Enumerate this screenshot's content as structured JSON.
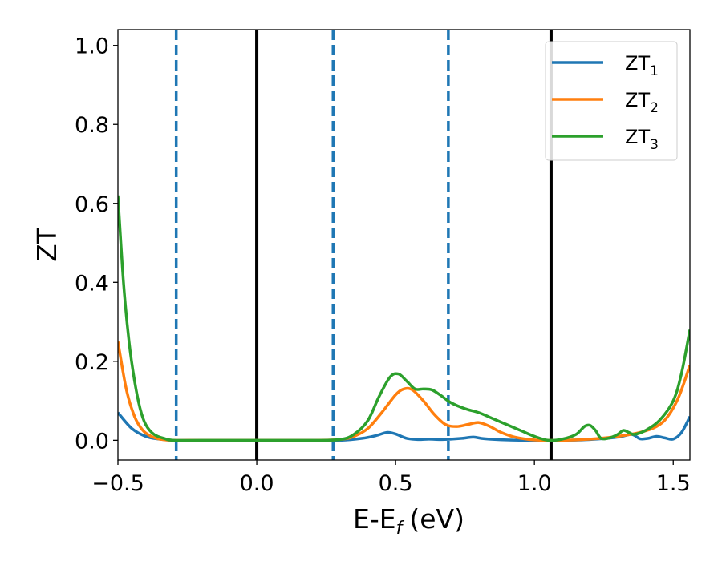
{
  "chart_data": {
    "type": "line",
    "xlabel": "E-E",
    "xlabel_sub": "f",
    "xlabel_unit": "(eV)",
    "ylabel": "ZT",
    "xlim": [
      -0.5,
      1.56
    ],
    "ylim": [
      -0.05,
      1.04
    ],
    "x_ticks": [
      -0.5,
      0.0,
      0.5,
      1.0,
      1.5
    ],
    "x_tick_labels": [
      "−0.5",
      "0.0",
      "0.5",
      "1.0",
      "1.5"
    ],
    "y_ticks": [
      0.0,
      0.2,
      0.4,
      0.6,
      0.8,
      1.0
    ],
    "y_tick_labels": [
      "0.0",
      "0.2",
      "0.4",
      "0.6",
      "0.8",
      "1.0"
    ],
    "grid": false,
    "legend_position": "top-right",
    "vertical_lines": [
      {
        "x": -0.29,
        "style": "dashed",
        "color": "#1f77b4"
      },
      {
        "x": 0.0,
        "style": "solid",
        "color": "#000000"
      },
      {
        "x": 0.275,
        "style": "dashed",
        "color": "#1f77b4"
      },
      {
        "x": 0.69,
        "style": "dashed",
        "color": "#1f77b4"
      },
      {
        "x": 1.06,
        "style": "solid",
        "color": "#000000"
      }
    ],
    "series": [
      {
        "name": "ZT",
        "name_sub": "1",
        "color": "#1f77b4",
        "x": [
          -0.5,
          -0.45,
          -0.4,
          -0.35,
          -0.3,
          -0.2,
          0.0,
          0.2,
          0.3,
          0.38,
          0.43,
          0.47,
          0.5,
          0.54,
          0.58,
          0.62,
          0.66,
          0.7,
          0.74,
          0.78,
          0.82,
          0.9,
          1.0,
          1.1,
          1.2,
          1.3,
          1.35,
          1.38,
          1.41,
          1.44,
          1.47,
          1.5,
          1.53,
          1.56
        ],
        "y": [
          0.07,
          0.03,
          0.01,
          0.003,
          0.0,
          0.0,
          0.0,
          0.0,
          0.0,
          0.005,
          0.012,
          0.02,
          0.016,
          0.005,
          0.002,
          0.003,
          0.002,
          0.003,
          0.005,
          0.008,
          0.004,
          0.001,
          0.0,
          0.0,
          0.002,
          0.008,
          0.015,
          0.004,
          0.005,
          0.01,
          0.006,
          0.003,
          0.02,
          0.06
        ]
      },
      {
        "name": "ZT",
        "name_sub": "2",
        "color": "#ff7f0e",
        "x": [
          -0.5,
          -0.47,
          -0.44,
          -0.41,
          -0.38,
          -0.35,
          -0.3,
          -0.2,
          0.0,
          0.2,
          0.3,
          0.35,
          0.4,
          0.45,
          0.5,
          0.53,
          0.56,
          0.6,
          0.64,
          0.68,
          0.72,
          0.76,
          0.8,
          0.84,
          0.88,
          0.93,
          1.0,
          1.1,
          1.2,
          1.3,
          1.38,
          1.44,
          1.48,
          1.52,
          1.56
        ],
        "y": [
          0.25,
          0.13,
          0.06,
          0.025,
          0.01,
          0.003,
          0.0,
          0.0,
          0.0,
          0.0,
          0.002,
          0.01,
          0.03,
          0.07,
          0.115,
          0.13,
          0.128,
          0.1,
          0.065,
          0.04,
          0.035,
          0.04,
          0.045,
          0.035,
          0.02,
          0.008,
          0.001,
          0.0,
          0.003,
          0.01,
          0.02,
          0.035,
          0.06,
          0.11,
          0.19
        ]
      },
      {
        "name": "ZT",
        "name_sub": "3",
        "color": "#2ca02c",
        "x": [
          -0.5,
          -0.48,
          -0.46,
          -0.44,
          -0.42,
          -0.4,
          -0.37,
          -0.33,
          -0.3,
          -0.2,
          0.0,
          0.2,
          0.3,
          0.35,
          0.4,
          0.44,
          0.48,
          0.51,
          0.54,
          0.57,
          0.6,
          0.63,
          0.66,
          0.7,
          0.75,
          0.8,
          0.85,
          0.9,
          0.95,
          1.0,
          1.05,
          1.1,
          1.15,
          1.18,
          1.2,
          1.22,
          1.24,
          1.27,
          1.3,
          1.32,
          1.34,
          1.36,
          1.4,
          1.45,
          1.5,
          1.53,
          1.56
        ],
        "y": [
          0.62,
          0.4,
          0.25,
          0.15,
          0.08,
          0.04,
          0.015,
          0.004,
          0.0,
          0.0,
          0.0,
          0.0,
          0.002,
          0.015,
          0.05,
          0.11,
          0.16,
          0.168,
          0.15,
          0.13,
          0.13,
          0.128,
          0.115,
          0.095,
          0.08,
          0.07,
          0.055,
          0.04,
          0.025,
          0.01,
          0.0,
          0.003,
          0.015,
          0.035,
          0.038,
          0.025,
          0.005,
          0.006,
          0.015,
          0.025,
          0.02,
          0.015,
          0.025,
          0.05,
          0.1,
          0.17,
          0.28
        ]
      }
    ]
  }
}
